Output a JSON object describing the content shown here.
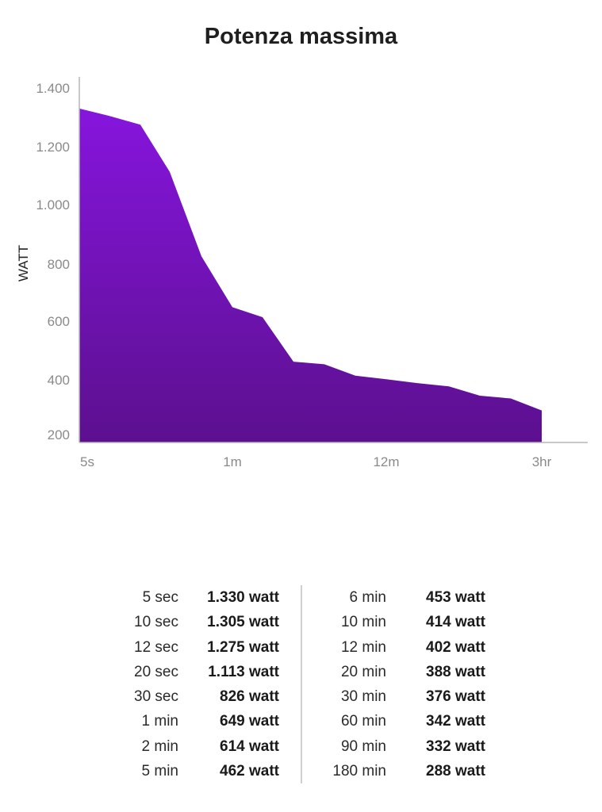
{
  "chart_data": {
    "type": "area",
    "title": "Potenza massima",
    "ylabel": "WATT",
    "xlabel": "",
    "yticks": [
      "1.400",
      "1.200",
      "1.000",
      "800",
      "600",
      "400",
      "200"
    ],
    "ytick_values": [
      1400,
      1200,
      1000,
      800,
      600,
      400,
      200
    ],
    "xtick_labels": [
      "5s",
      "1m",
      "12m",
      "3hr"
    ],
    "ylim": [
      200,
      1400
    ],
    "series": [
      {
        "name": "Potenza massima",
        "x": [
          "5 sec",
          "10 sec",
          "12 sec",
          "20 sec",
          "30 sec",
          "1 min",
          "2 min",
          "5 min",
          "6 min",
          "10 min",
          "12 min",
          "20 min",
          "30 min",
          "60 min",
          "90 min",
          "180 min"
        ],
        "values": [
          1330,
          1305,
          1275,
          1113,
          826,
          649,
          614,
          462,
          453,
          414,
          402,
          388,
          376,
          342,
          332,
          288
        ]
      }
    ],
    "colors": {
      "top": "#8615dd",
      "bottom": "#5c108f"
    }
  },
  "table": {
    "left": [
      {
        "duration": "5 sec",
        "value": "1.330 watt"
      },
      {
        "duration": "10 sec",
        "value": "1.305 watt"
      },
      {
        "duration": "12 sec",
        "value": "1.275 watt"
      },
      {
        "duration": "20 sec",
        "value": "1.113 watt"
      },
      {
        "duration": "30 sec",
        "value": "826 watt"
      },
      {
        "duration": "1 min",
        "value": "649 watt"
      },
      {
        "duration": "2 min",
        "value": "614 watt"
      },
      {
        "duration": "5 min",
        "value": "462 watt"
      }
    ],
    "right": [
      {
        "duration": "6 min",
        "value": "453 watt"
      },
      {
        "duration": "10 min",
        "value": "414 watt"
      },
      {
        "duration": "12 min",
        "value": "402 watt"
      },
      {
        "duration": "20 min",
        "value": "388 watt"
      },
      {
        "duration": "30 min",
        "value": "376 watt"
      },
      {
        "duration": "60 min",
        "value": "342 watt"
      },
      {
        "duration": "90 min",
        "value": "332 watt"
      },
      {
        "duration": "180 min",
        "value": "288 watt"
      }
    ]
  }
}
